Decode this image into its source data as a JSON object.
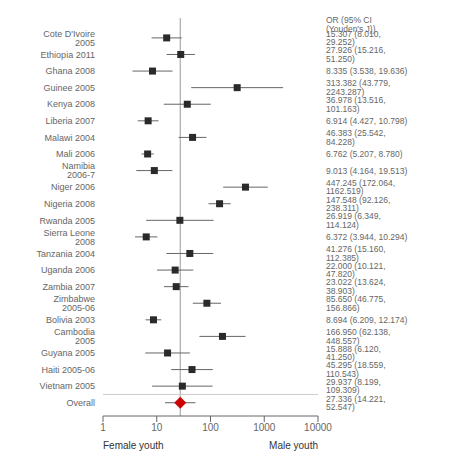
{
  "chart_data": {
    "type": "forest",
    "categories": [
      "Cote D'Ivoire 2005",
      "Ethiopia 2011",
      "Ghana 2008",
      "Guinee 2005",
      "Kenya 2008",
      "Liberia 2007",
      "Malawi 2004",
      "Mali 2006",
      "Namibia 2006-7",
      "Niger 2006",
      "Nigeria 2008",
      "Rwanda 2005",
      "Sierra Leone 2008",
      "Tanzania 2004",
      "Uganda 2006",
      "Zambia 2007",
      "Zimbabwe 2005-06",
      "Bolivia 2003",
      "Cambodia 2005",
      "Guyana 2005",
      "Haiti 2005-06",
      "Vietnam 2005",
      "Overall"
    ],
    "values": [
      15.307,
      27.926,
      8.335,
      313.382,
      36.978,
      6.914,
      46.383,
      6.762,
      9.013,
      447.245,
      147.548,
      26.919,
      6.372,
      41.276,
      22.0,
      23.022,
      85.65,
      8.694,
      166.95,
      15.888,
      45.295,
      29.937,
      27.336
    ],
    "lo": [
      8.01,
      15.216,
      3.538,
      43.779,
      13.516,
      4.427,
      25.542,
      5.207,
      4.164,
      172.064,
      92.126,
      6.349,
      3.944,
      15.16,
      10.121,
      13.624,
      46.775,
      6.209,
      62.138,
      6.12,
      18.559,
      8.199,
      14.221
    ],
    "hi": [
      29.252,
      51.25,
      19.636,
      2243.287,
      101.163,
      10.798,
      84.228,
      8.78,
      19.513,
      1162.519,
      238.311,
      114.124,
      10.294,
      112.385,
      47.82,
      38.903,
      156.866,
      12.174,
      448.557,
      41.25,
      110.543,
      109.309,
      52.547
    ],
    "value_labels": [
      "15.307 (8.010, 29.252)",
      "27.926 (15.216, 51.250)",
      "8.335 (3.538, 19.636)",
      "313.382 (43.779, 2243.287)",
      "36.978 (13.516, 101.163)",
      "6.914 (4.427, 10.798)",
      "46.383 (25.542, 84.228)",
      "6.762 (5.207, 8.780)",
      "9.013 (4.164, 19.513)",
      "447.245 (172.064, 1162.519)",
      "147.548 (92.126, 238.311)",
      "26.919 (6.349, 114.124)",
      "6.372 (3.944, 10.294)",
      "41.276 (15.160, 112.385)",
      "22.000 (10.121, 47.820)",
      "23.022 (13.624, 38.903)",
      "85.650 (46.775, 156.866)",
      "8.694 (6.209, 12.174)",
      "166.950 (62.138, 448.557)",
      "15.888 (6.120, 41.250)",
      "45.295 (18.559, 110.543)",
      "29.937 (8.199, 109.309)",
      "27.336 (14.221, 52.547)"
    ],
    "data_labels": true,
    "colors": [
      "#2a2a2a",
      "#2a2a2a",
      "#2a2a2a",
      "#2a2a2a",
      "#2a2a2a",
      "#2a2a2a",
      "#2a2a2a",
      "#2a2a2a",
      "#2a2a2a",
      "#2a2a2a",
      "#2a2a2a",
      "#2a2a2a",
      "#2a2a2a",
      "#2a2a2a",
      "#2a2a2a",
      "#2a2a2a",
      "#2a2a2a",
      "#2a2a2a",
      "#2a2a2a",
      "#2a2a2a",
      "#2a2a2a",
      "#2a2a2a",
      "#cc0000"
    ],
    "reference_line": 27.336,
    "annotations": [
      "OR (95% CI (Youden's J))"
    ],
    "xlabel": [
      "Female youth",
      "Male youth"
    ],
    "log": "x",
    "xlim": [
      1,
      10000
    ],
    "xticks": [
      1,
      10,
      100,
      1000,
      10000
    ],
    "grid": false
  }
}
